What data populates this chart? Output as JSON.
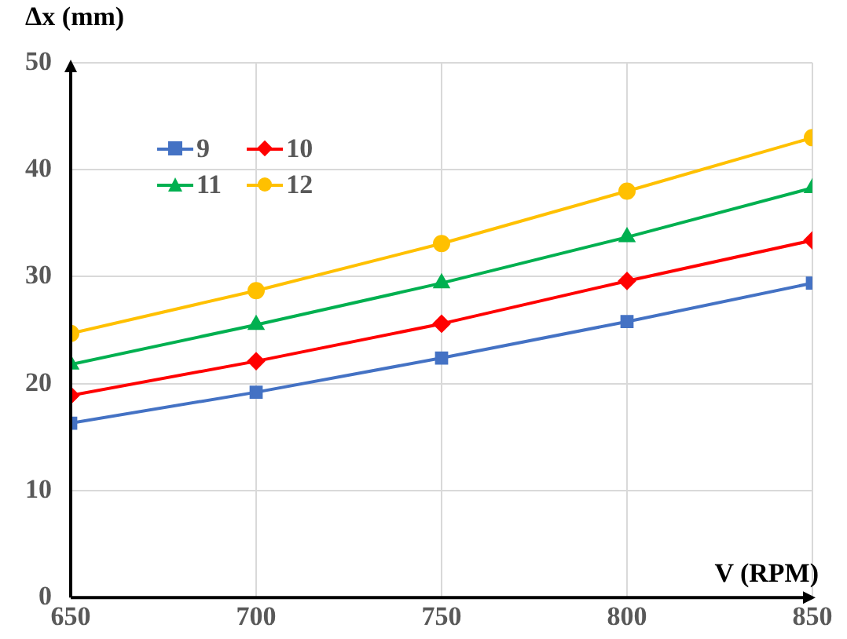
{
  "chart_data": {
    "type": "line",
    "xlabel": "V (RPM)",
    "ylabel": "Δx (mm)",
    "x": [
      650,
      700,
      750,
      800,
      850
    ],
    "xlim": [
      650,
      850
    ],
    "xticks": [
      650,
      700,
      750,
      800,
      850
    ],
    "ylim": [
      0,
      50
    ],
    "yticks": [
      0,
      10,
      20,
      30,
      40,
      50
    ],
    "grid": true,
    "legend": "top left",
    "line_style": "solid",
    "series": [
      {
        "name": "9",
        "color": "#4472c4",
        "marker": "square",
        "values": [
          16.3,
          19.2,
          22.4,
          25.8,
          29.4
        ]
      },
      {
        "name": "10",
        "color": "#ff0000",
        "marker": "diamond",
        "values": [
          18.9,
          22.1,
          25.6,
          29.6,
          33.4
        ]
      },
      {
        "name": "11",
        "color": "#00b050",
        "marker": "triangle",
        "values": [
          21.8,
          25.5,
          29.4,
          33.7,
          38.3
        ]
      },
      {
        "name": "12",
        "color": "#ffc000",
        "marker": "circle",
        "values": [
          24.7,
          28.7,
          33.1,
          38.0,
          43.0
        ]
      }
    ]
  }
}
